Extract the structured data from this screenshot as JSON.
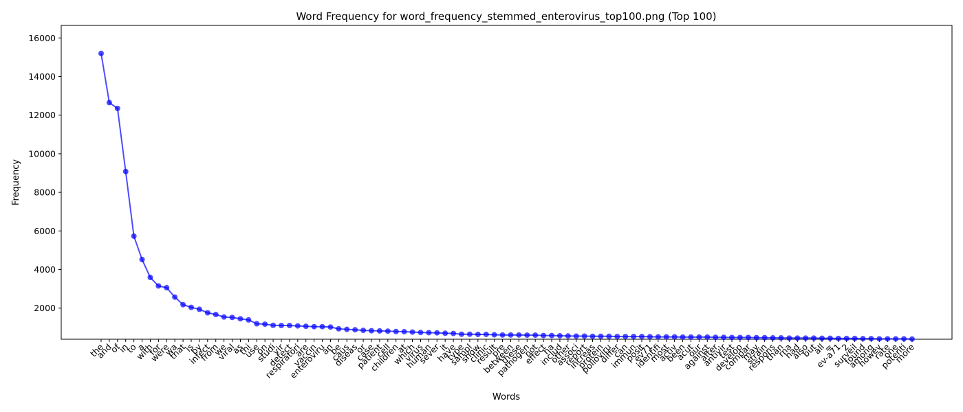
{
  "chart_data": {
    "type": "line",
    "title": "Word Frequency for word_frequency_stemmed_enterovirus_top100.png (Top 100)",
    "xlabel": "Words",
    "ylabel": "Frequency",
    "ylim": [
      390,
      16650
    ],
    "yticks": [
      2000,
      4000,
      6000,
      8000,
      10000,
      12000,
      14000,
      16000
    ],
    "grid": false,
    "series_color": "#0000ff",
    "categories": [
      "the",
      "and",
      "of",
      "in",
      "to",
      "a",
      "with",
      "for",
      "were",
      "wa",
      "that",
      "is",
      "by",
      "infect",
      "from",
      "we",
      "viral",
      "as",
      "thi",
      "use",
      "on",
      "studi",
      "vir",
      "detect",
      "respiratori",
      "are",
      "vaccin",
      "enteroviru",
      "an",
      "be",
      "caus",
      "diseas",
      "or",
      "case",
      "patient",
      "cell",
      "children",
      "at",
      "which",
      "virus",
      "human",
      "sever",
      "it",
      "have",
      "type",
      "sampl",
      "show",
      "clinic",
      "result",
      "pre",
      "between",
      "these",
      "pathogen",
      "not",
      "effect",
      "ha",
      "includ",
      "other",
      "associ",
      "report",
      "increas",
      "protein",
      "polioviru",
      "differ",
      "can",
      "immun",
      "posit",
      "ev71",
      "identifi",
      "most",
      "activ",
      "been",
      "acut",
      "our",
      "against",
      "after",
      "antivir",
      "test",
      "develop",
      "compar",
      "may",
      "strain",
      "respons",
      "than",
      "rna",
      "had",
      "also",
      "but",
      "all",
      "=",
      "ev-a71",
      "2",
      "surveil",
      "found",
      "among",
      "howev",
      "rate",
      "one",
      "potenti",
      "more"
    ],
    "values": [
      15200,
      12650,
      12350,
      9080,
      5730,
      4520,
      3590,
      3150,
      3060,
      2570,
      2180,
      2040,
      1940,
      1760,
      1670,
      1540,
      1520,
      1450,
      1390,
      1190,
      1170,
      1110,
      1100,
      1100,
      1080,
      1060,
      1040,
      1040,
      1020,
      930,
      900,
      880,
      850,
      830,
      820,
      810,
      790,
      780,
      760,
      740,
      730,
      720,
      700,
      690,
      650,
      650,
      640,
      640,
      620,
      610,
      610,
      610,
      600,
      600,
      580,
      580,
      570,
      560,
      550,
      550,
      540,
      540,
      540,
      530,
      530,
      530,
      530,
      520,
      510,
      510,
      510,
      500,
      500,
      500,
      500,
      490,
      490,
      480,
      480,
      480,
      470,
      470,
      460,
      460,
      450,
      450,
      450,
      450,
      440,
      440,
      430,
      430,
      430,
      420,
      420,
      410,
      410,
      410,
      410,
      400
    ]
  }
}
